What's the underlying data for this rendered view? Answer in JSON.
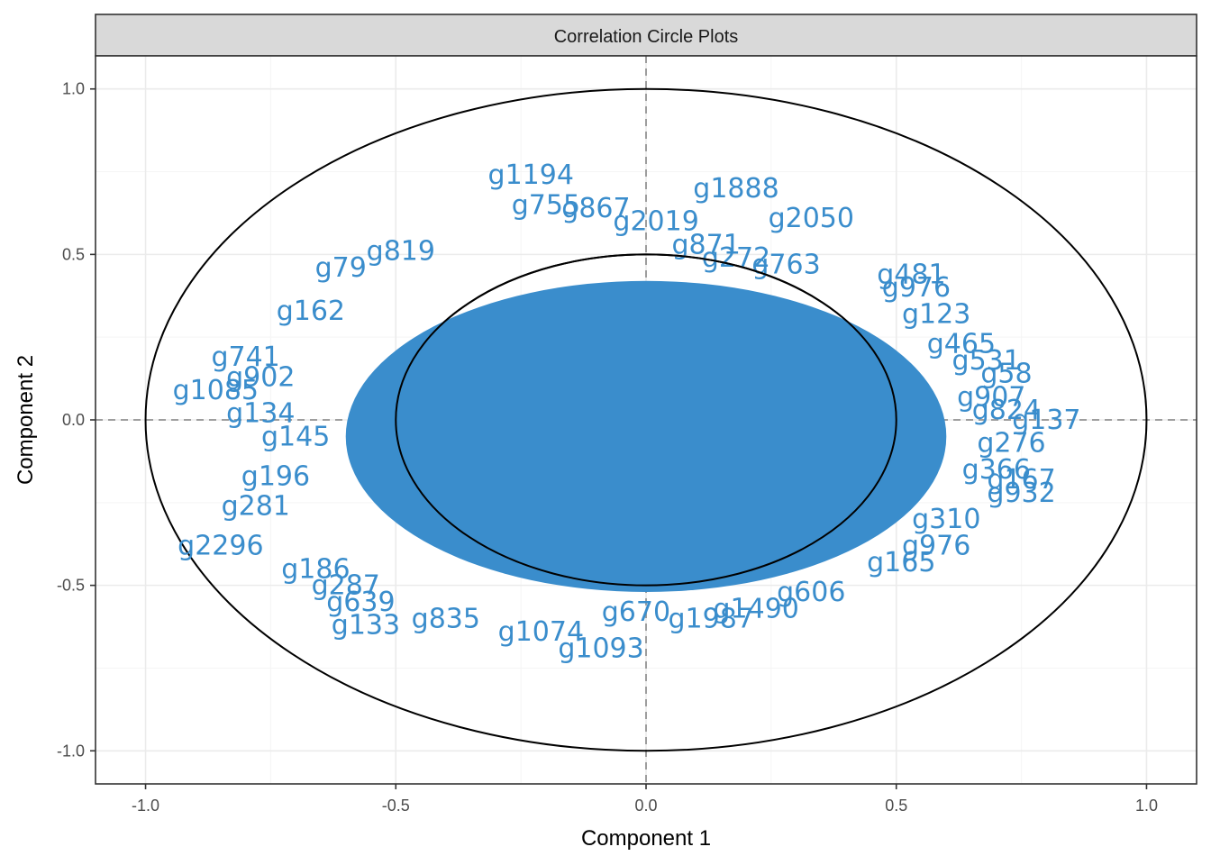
{
  "chart_data": {
    "type": "scatter",
    "title": "Correlation Circle Plots",
    "xlabel": "Component  1",
    "ylabel": "Component  2",
    "xlim": [
      -1.1,
      1.1
    ],
    "ylim": [
      -1.1,
      1.1
    ],
    "xticks": [
      -1.0,
      -0.5,
      0.0,
      0.5,
      1.0
    ],
    "yticks": [
      -1.0,
      -0.5,
      0.0,
      0.5,
      1.0
    ],
    "xtick_labels": [
      "-1.0",
      "-0.5",
      "0.0",
      "0.5",
      "1.0"
    ],
    "ytick_labels": [
      "-1.0",
      "-0.5",
      "0.0",
      "0.5",
      "1.0"
    ],
    "grid": true,
    "circles": [
      1.0,
      0.5
    ],
    "reference_lines": {
      "x": 0,
      "y": 0,
      "style": "dashed"
    },
    "label_color": "#3a8dcc",
    "dense_region": {
      "center": [
        0.0,
        -0.05
      ],
      "radius_x": 0.6,
      "radius_y": 0.47
    },
    "points": [
      {
        "label": "g1194",
        "x": -0.23,
        "y": 0.74
      },
      {
        "label": "g1888",
        "x": 0.18,
        "y": 0.7
      },
      {
        "label": "g2050",
        "x": 0.33,
        "y": 0.61
      },
      {
        "label": "g755",
        "x": -0.2,
        "y": 0.65
      },
      {
        "label": "g867",
        "x": -0.1,
        "y": 0.64
      },
      {
        "label": "g2019",
        "x": 0.02,
        "y": 0.6
      },
      {
        "label": "g871",
        "x": 0.12,
        "y": 0.53
      },
      {
        "label": "g272",
        "x": 0.18,
        "y": 0.49
      },
      {
        "label": "g763",
        "x": 0.28,
        "y": 0.47
      },
      {
        "label": "g481",
        "x": 0.53,
        "y": 0.44
      },
      {
        "label": "g976",
        "x": 0.54,
        "y": 0.4
      },
      {
        "label": "g123",
        "x": 0.58,
        "y": 0.32
      },
      {
        "label": "g465",
        "x": 0.63,
        "y": 0.23
      },
      {
        "label": "g531",
        "x": 0.68,
        "y": 0.18
      },
      {
        "label": "g58",
        "x": 0.72,
        "y": 0.14
      },
      {
        "label": "g907",
        "x": 0.69,
        "y": 0.07
      },
      {
        "label": "g824",
        "x": 0.72,
        "y": 0.03
      },
      {
        "label": "g137",
        "x": 0.8,
        "y": 0.0
      },
      {
        "label": "g276",
        "x": 0.73,
        "y": -0.07
      },
      {
        "label": "g366",
        "x": 0.7,
        "y": -0.15
      },
      {
        "label": "g167",
        "x": 0.75,
        "y": -0.18
      },
      {
        "label": "g932",
        "x": 0.75,
        "y": -0.22
      },
      {
        "label": "g310",
        "x": 0.6,
        "y": -0.3
      },
      {
        "label": "g976",
        "x": 0.58,
        "y": -0.38
      },
      {
        "label": "g165",
        "x": 0.51,
        "y": -0.43
      },
      {
        "label": "g606",
        "x": 0.33,
        "y": -0.52
      },
      {
        "label": "g1490",
        "x": 0.22,
        "y": -0.57
      },
      {
        "label": "g1987",
        "x": 0.13,
        "y": -0.6
      },
      {
        "label": "g670",
        "x": -0.02,
        "y": -0.58
      },
      {
        "label": "g1093",
        "x": -0.09,
        "y": -0.69
      },
      {
        "label": "g1074",
        "x": -0.21,
        "y": -0.64
      },
      {
        "label": "g835",
        "x": -0.4,
        "y": -0.6
      },
      {
        "label": "g133",
        "x": -0.56,
        "y": -0.62
      },
      {
        "label": "g639",
        "x": -0.57,
        "y": -0.55
      },
      {
        "label": "g287",
        "x": -0.6,
        "y": -0.5
      },
      {
        "label": "g186",
        "x": -0.66,
        "y": -0.45
      },
      {
        "label": "g2296",
        "x": -0.85,
        "y": -0.38
      },
      {
        "label": "g281",
        "x": -0.78,
        "y": -0.26
      },
      {
        "label": "g196",
        "x": -0.74,
        "y": -0.17
      },
      {
        "label": "g145",
        "x": -0.7,
        "y": -0.05
      },
      {
        "label": "g134",
        "x": -0.77,
        "y": 0.02
      },
      {
        "label": "g1085",
        "x": -0.86,
        "y": 0.09
      },
      {
        "label": "g902",
        "x": -0.77,
        "y": 0.13
      },
      {
        "label": "g741",
        "x": -0.8,
        "y": 0.19
      },
      {
        "label": "g162",
        "x": -0.67,
        "y": 0.33
      },
      {
        "label": "g79",
        "x": -0.61,
        "y": 0.46
      },
      {
        "label": "g819",
        "x": -0.49,
        "y": 0.51
      }
    ]
  }
}
